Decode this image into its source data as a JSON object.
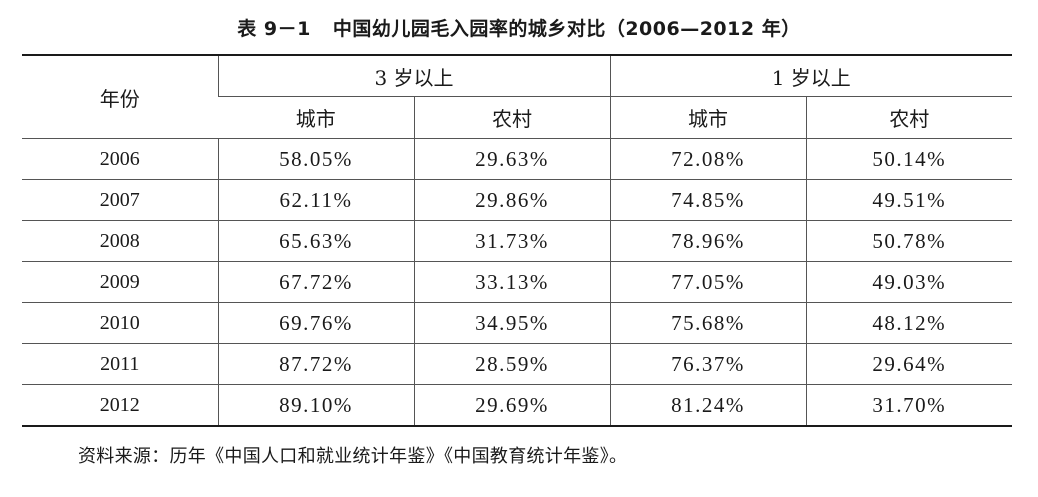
{
  "caption": {
    "number": "表 9－1",
    "title": "中国幼儿园毛入园率的城乡对比（2006—2012 年）"
  },
  "table": {
    "year_header": "年份",
    "groups": [
      "3 岁以上",
      "1 岁以上"
    ],
    "subheaders": [
      "城市",
      "农村",
      "城市",
      "农村"
    ],
    "rows": [
      {
        "year": "2006",
        "values": [
          "58.05%",
          "29.63%",
          "72.08%",
          "50.14%"
        ]
      },
      {
        "year": "2007",
        "values": [
          "62.11%",
          "29.86%",
          "74.85%",
          "49.51%"
        ]
      },
      {
        "year": "2008",
        "values": [
          "65.63%",
          "31.73%",
          "78.96%",
          "50.78%"
        ]
      },
      {
        "year": "2009",
        "values": [
          "67.72%",
          "33.13%",
          "77.05%",
          "49.03%"
        ]
      },
      {
        "year": "2010",
        "values": [
          "69.76%",
          "34.95%",
          "75.68%",
          "48.12%"
        ]
      },
      {
        "year": "2011",
        "values": [
          "87.72%",
          "28.59%",
          "76.37%",
          "29.64%"
        ]
      },
      {
        "year": "2012",
        "values": [
          "89.10%",
          "29.69%",
          "81.24%",
          "31.70%"
        ]
      }
    ]
  },
  "source": "资料来源：历年《中国人口和就业统计年鉴》《中国教育统计年鉴》。"
}
